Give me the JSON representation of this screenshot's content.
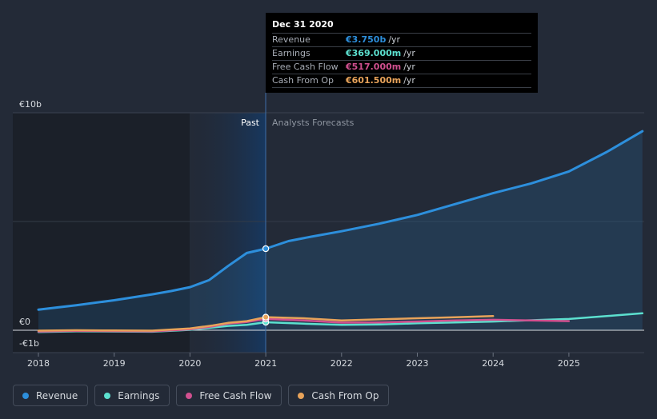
{
  "chart_data": {
    "type": "line",
    "y_axis_labels": [
      "€10b",
      "€0",
      "-€1b"
    ],
    "ylim": [
      -1,
      10
    ],
    "x_ticks": [
      "2018",
      "2019",
      "2020",
      "2021",
      "2022",
      "2023",
      "2024",
      "2025"
    ],
    "past_label": "Past",
    "forecast_label": "Analysts Forecasts",
    "series": [
      {
        "name": "Revenue",
        "color": "#2d8fdc",
        "points": [
          [
            2018.0,
            0.95
          ],
          [
            2018.5,
            1.15
          ],
          [
            2019.0,
            1.38
          ],
          [
            2019.5,
            1.65
          ],
          [
            2019.75,
            1.8
          ],
          [
            2020.0,
            1.98
          ],
          [
            2020.25,
            2.3
          ],
          [
            2020.5,
            2.95
          ],
          [
            2020.75,
            3.55
          ],
          [
            2021.0,
            3.75
          ],
          [
            2021.3,
            4.1
          ],
          [
            2021.6,
            4.3
          ],
          [
            2022.0,
            4.55
          ],
          [
            2022.5,
            4.9
          ],
          [
            2023.0,
            5.3
          ],
          [
            2023.5,
            5.8
          ],
          [
            2024.0,
            6.3
          ],
          [
            2024.5,
            6.75
          ],
          [
            2025.0,
            7.3
          ],
          [
            2025.5,
            8.2
          ],
          [
            2025.97,
            9.15
          ]
        ]
      },
      {
        "name": "Earnings",
        "color": "#5ce0cf",
        "points": [
          [
            2018.0,
            -0.08
          ],
          [
            2018.5,
            -0.05
          ],
          [
            2019.0,
            -0.06
          ],
          [
            2019.5,
            -0.07
          ],
          [
            2020.0,
            0.02
          ],
          [
            2020.5,
            0.2
          ],
          [
            2020.75,
            0.25
          ],
          [
            2021.0,
            0.369
          ],
          [
            2021.5,
            0.3
          ],
          [
            2022.0,
            0.25
          ],
          [
            2022.5,
            0.27
          ],
          [
            2023.0,
            0.32
          ],
          [
            2023.5,
            0.36
          ],
          [
            2024.0,
            0.4
          ],
          [
            2024.5,
            0.46
          ],
          [
            2025.0,
            0.52
          ],
          [
            2025.5,
            0.65
          ],
          [
            2025.97,
            0.78
          ]
        ]
      },
      {
        "name": "Free Cash Flow",
        "color": "#d1508f",
        "points": [
          [
            2018.0,
            -0.06
          ],
          [
            2018.5,
            -0.03
          ],
          [
            2019.0,
            -0.04
          ],
          [
            2019.5,
            -0.05
          ],
          [
            2020.0,
            0.04
          ],
          [
            2020.3,
            0.18
          ],
          [
            2020.5,
            0.3
          ],
          [
            2020.75,
            0.38
          ],
          [
            2021.0,
            0.517
          ],
          [
            2021.5,
            0.45
          ],
          [
            2022.0,
            0.35
          ],
          [
            2022.5,
            0.36
          ],
          [
            2023.0,
            0.4
          ],
          [
            2023.5,
            0.45
          ],
          [
            2024.0,
            0.48
          ],
          [
            2024.5,
            0.45
          ],
          [
            2025.0,
            0.42
          ]
        ]
      },
      {
        "name": "Cash From Op",
        "color": "#e8a35a",
        "points": [
          [
            2018.0,
            -0.02
          ],
          [
            2018.5,
            0.0
          ],
          [
            2019.0,
            -0.01
          ],
          [
            2019.5,
            -0.02
          ],
          [
            2020.0,
            0.08
          ],
          [
            2020.3,
            0.22
          ],
          [
            2020.5,
            0.34
          ],
          [
            2020.75,
            0.42
          ],
          [
            2021.0,
            0.6015
          ],
          [
            2021.5,
            0.55
          ],
          [
            2022.0,
            0.45
          ],
          [
            2022.5,
            0.5
          ],
          [
            2023.0,
            0.55
          ],
          [
            2023.5,
            0.6
          ],
          [
            2024.0,
            0.65
          ]
        ]
      }
    ],
    "highlight_x": 2021.0
  },
  "tooltip": {
    "date": "Dec 31 2020",
    "rows": [
      {
        "label": "Revenue",
        "value": "€3.750b",
        "unit": "/yr",
        "color": "#2d8fdc"
      },
      {
        "label": "Earnings",
        "value": "€369.000m",
        "unit": "/yr",
        "color": "#5ce0cf"
      },
      {
        "label": "Free Cash Flow",
        "value": "€517.000m",
        "unit": "/yr",
        "color": "#d1508f"
      },
      {
        "label": "Cash From Op",
        "value": "€601.500m",
        "unit": "/yr",
        "color": "#e8a35a"
      }
    ]
  },
  "legend": [
    {
      "label": "Revenue",
      "color": "#2d8fdc"
    },
    {
      "label": "Earnings",
      "color": "#5ce0cf"
    },
    {
      "label": "Free Cash Flow",
      "color": "#d1508f"
    },
    {
      "label": "Cash From Op",
      "color": "#e8a35a"
    }
  ]
}
